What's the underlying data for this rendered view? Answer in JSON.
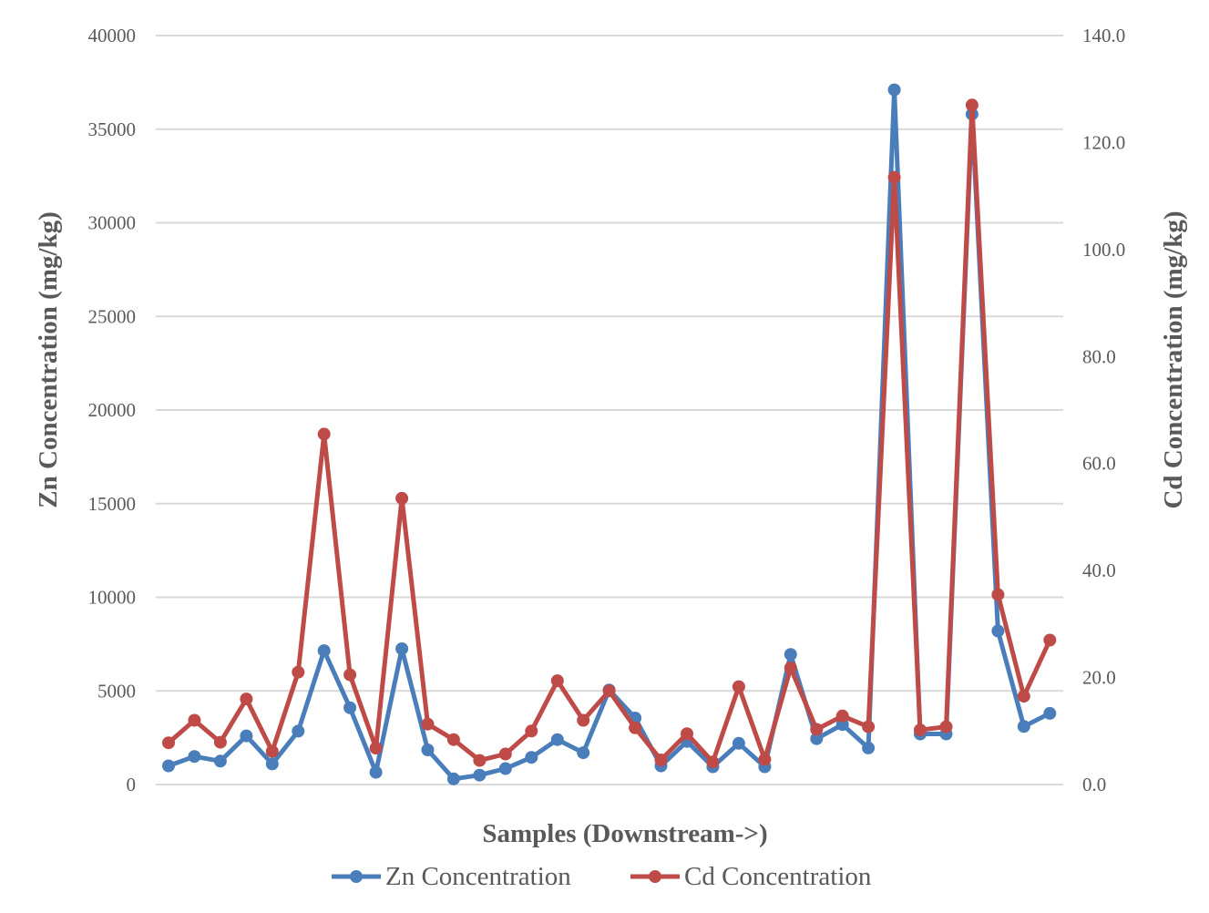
{
  "chart_data": {
    "type": "line",
    "xlabel": "Samples (Downstream->)",
    "ylabel_left": "Zn Concentration (mg/kg)",
    "ylabel_right": "Cd Concentration (mg/kg)",
    "ylim_left": [
      0,
      40000
    ],
    "ylim_right": [
      0,
      140
    ],
    "y_ticks_left": [
      "0",
      "5000",
      "10000",
      "15000",
      "20000",
      "25000",
      "30000",
      "35000",
      "40000"
    ],
    "y_ticks_right": [
      "0.0",
      "20.0",
      "40.0",
      "60.0",
      "80.0",
      "100.0",
      "120.0",
      "140.0"
    ],
    "grid": true,
    "legend_position": "bottom",
    "series": [
      {
        "name": "Zn Concentration",
        "axis": "left",
        "color": "#4a7ebb",
        "values": [
          1000,
          1500,
          1250,
          2600,
          1100,
          2850,
          7150,
          4100,
          650,
          7250,
          1850,
          300,
          500,
          850,
          1450,
          2400,
          1700,
          5050,
          3550,
          1000,
          2300,
          950,
          2200,
          950,
          6950,
          2450,
          3200,
          1950,
          37100,
          2700,
          2700,
          35800,
          8200,
          3100,
          3800
        ]
      },
      {
        "name": "Cd Concentration",
        "axis": "right",
        "color": "#be4b48",
        "values": [
          7.8,
          12,
          7.9,
          16,
          6.2,
          21,
          65.5,
          20.5,
          6.8,
          53.5,
          11.3,
          8.4,
          4.5,
          5.7,
          10,
          19.4,
          12,
          17.5,
          10.6,
          4.6,
          9.5,
          4.2,
          18.3,
          4.7,
          21.8,
          10.3,
          12.8,
          10.8,
          113.5,
          10.2,
          10.8,
          127,
          35.5,
          16.5,
          27
        ]
      }
    ]
  }
}
